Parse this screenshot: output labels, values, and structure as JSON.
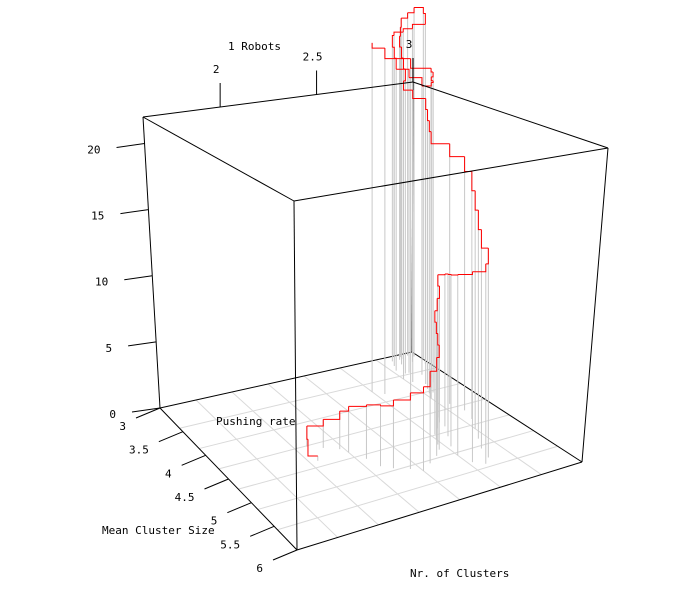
{
  "chart_data": {
    "type": "line",
    "title": "1 Robots",
    "labels": {
      "x": "Nr. of Clusters",
      "y": "Mean Cluster Size",
      "z": "Pushing rate"
    },
    "ticks": {
      "top": [
        "2",
        "2.5",
        "3"
      ],
      "y": [
        "3",
        "3.5",
        "4",
        "4.5",
        "5",
        "5.5",
        "6"
      ],
      "z": [
        "0",
        "5",
        "10",
        "15",
        "20"
      ]
    },
    "ranges": {
      "x": [
        1.6,
        3.0
      ],
      "y": [
        3.0,
        6.0
      ],
      "z": [
        0,
        22
      ]
    },
    "grid": true,
    "colors": {
      "trace": "#ff0000",
      "droplines": "#c8c8c8",
      "box": "#000000",
      "grid": "#d9d9d9"
    },
    "series": [
      {
        "x": [
          2.04,
          2.04,
          2.06,
          2.12,
          2.18,
          2.2,
          2.24,
          2.26,
          2.3,
          2.36,
          2.4,
          2.46,
          2.52,
          2.56,
          2.58,
          2.6,
          2.62,
          2.66,
          2.7,
          2.72,
          2.7,
          2.66,
          2.62,
          2.6,
          2.62,
          2.66,
          2.7,
          2.72,
          2.76,
          2.8,
          2.84,
          2.86,
          2.84,
          2.8,
          2.82,
          2.84,
          2.86,
          2.82,
          2.8,
          2.84,
          2.86,
          2.88,
          2.9,
          2.92,
          2.94,
          2.96,
          2.98,
          3.0,
          2.98,
          2.94,
          2.92,
          2.9,
          2.86,
          2.84,
          2.82,
          2.86,
          2.9,
          2.92,
          2.9,
          2.86,
          2.84,
          2.8,
          2.72,
          2.64,
          2.6
        ],
        "y": [
          4.6,
          4.4,
          4.3,
          4.4,
          4.5,
          4.6,
          4.8,
          5.0,
          5.1,
          5.2,
          5.3,
          5.2,
          5.1,
          5.0,
          4.9,
          4.8,
          4.7,
          4.6,
          4.5,
          4.4,
          4.6,
          4.8,
          5.0,
          5.2,
          5.4,
          5.5,
          5.4,
          5.2,
          5.0,
          4.8,
          4.6,
          4.4,
          4.2,
          4.0,
          3.9,
          3.8,
          3.7,
          3.6,
          3.5,
          3.4,
          3.3,
          3.2,
          3.1,
          3.05,
          3.0,
          3.05,
          3.1,
          3.2,
          3.3,
          3.2,
          3.1,
          3.0,
          3.1,
          3.2,
          3.3,
          3.4,
          3.5,
          3.6,
          3.7,
          3.8,
          3.9,
          4.0,
          3.9,
          3.7,
          3.6
        ],
        "z": [
          0.3,
          0.8,
          1.3,
          1.8,
          2.4,
          2.9,
          3.4,
          3.8,
          4.3,
          4.8,
          5.3,
          5.8,
          6.2,
          6.6,
          7.0,
          7.4,
          7.8,
          8.2,
          8.6,
          9.0,
          9.6,
          10.2,
          10.8,
          11.4,
          12.0,
          12.6,
          13.2,
          13.8,
          14.4,
          15.0,
          15.6,
          16.0,
          16.4,
          16.8,
          17.2,
          17.6,
          18.0,
          18.4,
          18.8,
          19.2,
          19.6,
          20.0,
          20.4,
          20.8,
          21.2,
          21.6,
          22.0,
          21.8,
          21.4,
          21.0,
          20.6,
          20.2,
          19.8,
          19.4,
          19.0,
          18.6,
          18.2,
          18.6,
          19.0,
          19.6,
          20.2,
          20.8,
          21.4,
          21.8,
          22.0
        ]
      }
    ]
  }
}
